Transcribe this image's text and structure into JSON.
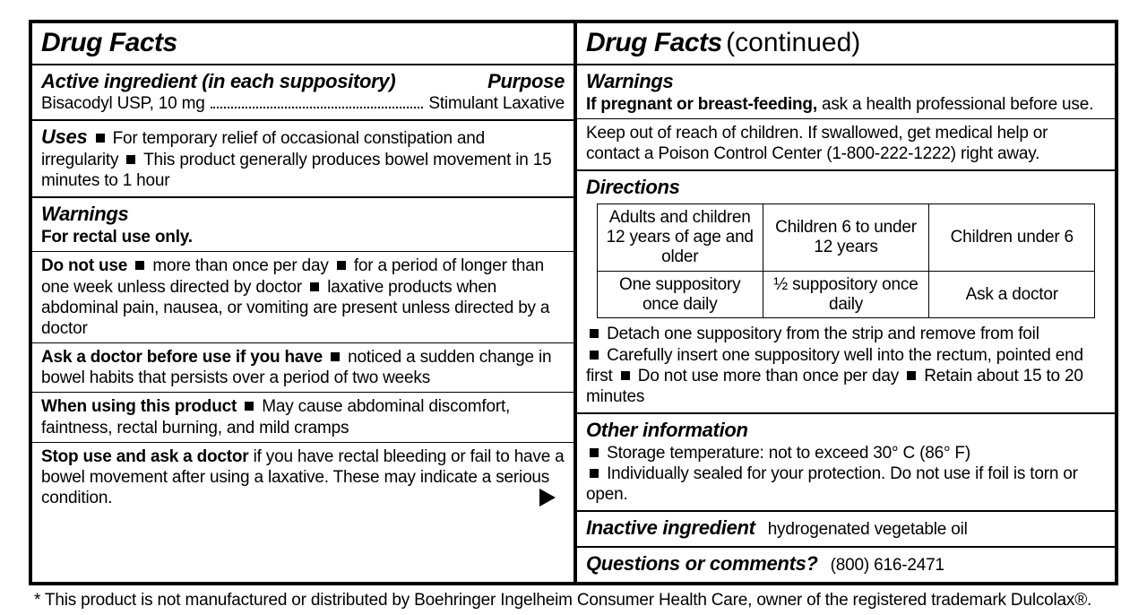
{
  "left": {
    "title": "Drug Facts",
    "active": {
      "heading": "Active ingredient (in each suppository)",
      "purpose_label": "Purpose",
      "ingredient": "Bisacodyl USP, 10 mg",
      "purpose": "Stimulant Laxative"
    },
    "uses": {
      "heading": "Uses",
      "item1": "For temporary relief of occasional constipation and irregularity",
      "item2": "This product generally produces bowel movement in 15 minutes to 1 hour"
    },
    "warnings": {
      "heading": "Warnings",
      "rectal": "For rectal use only.",
      "donot_lead": "Do not use",
      "donot1": "more than once per day",
      "donot2": "for a period of longer than one week unless directed by doctor",
      "donot3": "laxative products when abdominal pain, nausea, or vomiting are present unless directed by a doctor",
      "ask_lead": "Ask a doctor before use if you have",
      "ask1": "noticed a sudden change in bowel habits that persists over a period of two weeks",
      "when_lead": "When using this product",
      "when1": "May cause abdominal discomfort, faintness, rectal burning, and mild cramps",
      "stop_lead": "Stop use and ask a doctor",
      "stop_body": "if you have rectal bleeding or fail to have a bowel movement after using a laxative. These may indicate a serious condition."
    }
  },
  "right": {
    "title": "Drug Facts",
    "continued": "(continued)",
    "warnings": {
      "heading": "Warnings",
      "preg_lead": "If pregnant or breast-feeding,",
      "preg_body": "ask a health professional before use.",
      "keep": "Keep out of reach of children. If swallowed, get medical help or contact a Poison Control Center (1-800-222-1222) right away."
    },
    "directions": {
      "heading": "Directions",
      "h1": "Adults and children 12 years of age and older",
      "h2": "Children 6 to under 12 years",
      "h3": "Children under 6",
      "r1": "One suppository once daily",
      "r2": "½ suppository once daily",
      "r3": "Ask a doctor",
      "b1": "Detach one suppository from the strip and remove from foil",
      "b2a": "Carefully insert one suppository well into the rectum, pointed end first",
      "b2b": "Do not use more than once per day",
      "b2c": "Retain about 15 to 20 minutes"
    },
    "other": {
      "heading": "Other information",
      "l1": "Storage temperature: not to exceed 30° C (86° F)",
      "l2": "Individually sealed for your protection. Do not use if foil is torn or open."
    },
    "inactive": {
      "heading": "Inactive ingredient",
      "body": "hydrogenated vegetable oil"
    },
    "questions": {
      "heading": "Questions or comments?",
      "phone": "(800) 616-2471"
    }
  },
  "footnote": "* This product is not manufactured or distributed by Boehringer Ingelheim Consumer Health Care, owner of the registered trademark Dulcolax®."
}
